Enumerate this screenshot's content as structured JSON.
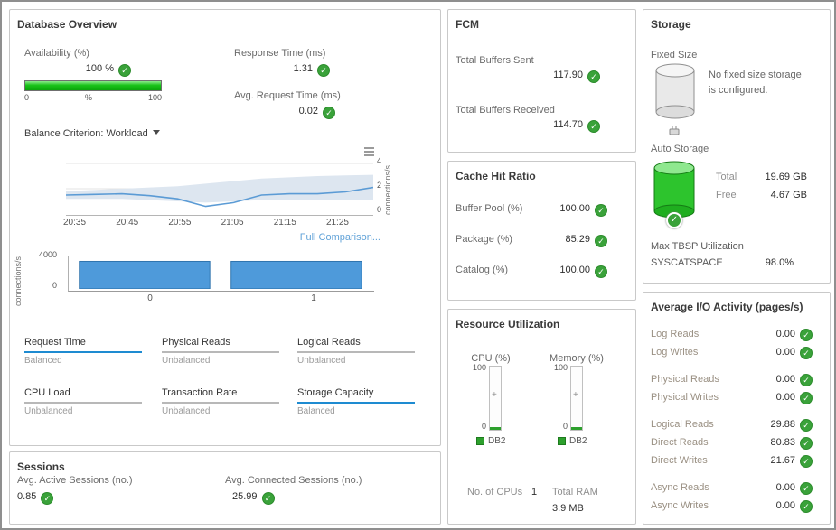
{
  "colors": {
    "status_ok_green": "#3aa23a",
    "balanced_blue": "#1e8bd1",
    "unbalanced_gray": "#b8b8b8",
    "link_blue": "#62a3d8"
  },
  "database_overview": {
    "title": "Database Overview",
    "availability_label": "Availability (%)",
    "availability_value": "100 %",
    "gauge_min": "0",
    "gauge_mid": "%",
    "gauge_max": "100",
    "response_time_label": "Response Time (ms)",
    "response_time_value": "1.31",
    "avg_request_label": "Avg. Request Time (ms)",
    "avg_request_value": "0.02",
    "balance_criterion_label": "Balance Criterion:",
    "balance_criterion_value": "Workload",
    "full_comparison_link": "Full Comparison...",
    "tiles": [
      {
        "name": "Request Time",
        "status": "Balanced"
      },
      {
        "name": "Physical Reads",
        "status": "Unbalanced"
      },
      {
        "name": "Logical Reads",
        "status": "Unbalanced"
      },
      {
        "name": "CPU Load",
        "status": "Unbalanced"
      },
      {
        "name": "Transaction Rate",
        "status": "Unbalanced"
      },
      {
        "name": "Storage Capacity",
        "status": "Balanced"
      }
    ]
  },
  "sessions": {
    "title": "Sessions",
    "active_label": "Avg. Active Sessions (no.)",
    "active_value": "0.85",
    "connected_label": "Avg. Connected Sessions (no.)",
    "connected_value": "25.99"
  },
  "fcm": {
    "title": "FCM",
    "sent_label": "Total Buffers Sent",
    "sent_value": "117.90",
    "received_label": "Total Buffers Received",
    "received_value": "114.70"
  },
  "cache": {
    "title": "Cache Hit Ratio",
    "rows": [
      {
        "label": "Buffer Pool (%)",
        "value": "100.00"
      },
      {
        "label": "Package (%)",
        "value": "85.29"
      },
      {
        "label": "Catalog (%)",
        "value": "100.00"
      }
    ]
  },
  "resource": {
    "title": "Resource Utilization",
    "cpu_label": "CPU (%)",
    "memory_label": "Memory (%)",
    "gauge_max": "100",
    "gauge_min": "0",
    "legend": "DB2",
    "cpus_label": "No. of CPUs",
    "cpus_value": "1",
    "ram_label": "Total RAM",
    "ram_value": "3.9 MB"
  },
  "storage": {
    "title": "Storage",
    "fixed_label": "Fixed Size",
    "fixed_message": "No fixed size storage is configured.",
    "auto_label": "Auto Storage",
    "total_label": "Total",
    "total_value": "19.69 GB",
    "free_label": "Free",
    "free_value": "4.67 GB",
    "max_tbsp_label": "Max TBSP Utilization",
    "tbsp_name": "SYSCATSPACE",
    "tbsp_value": "98.0%"
  },
  "io": {
    "title": "Average I/O Activity (pages/s)",
    "rows": [
      {
        "label": "Log Reads",
        "value": "0.00"
      },
      {
        "label": "Log Writes",
        "value": "0.00"
      },
      {
        "label": "Physical Reads",
        "value": "0.00"
      },
      {
        "label": "Physical Writes",
        "value": "0.00"
      },
      {
        "label": "Logical Reads",
        "value": "29.88"
      },
      {
        "label": "Direct Reads",
        "value": "80.83"
      },
      {
        "label": "Direct Writes",
        "value": "21.67"
      },
      {
        "label": "Async Reads",
        "value": "0.00"
      },
      {
        "label": "Async Writes",
        "value": "0.00"
      }
    ]
  },
  "chart_data": [
    {
      "type": "line",
      "title": "Connections over time",
      "x_ticks": [
        "20:35",
        "20:45",
        "20:55",
        "21:05",
        "21:15",
        "21:25"
      ],
      "series": [
        {
          "name": "connections/s",
          "values": [
            1.5,
            1.55,
            1.6,
            1.45,
            1.2,
            0.6,
            0.9,
            1.5,
            1.6,
            1.6,
            1.75,
            2.1
          ]
        }
      ],
      "band": {
        "upper": [
          1.8,
          1.9,
          2.0,
          2.1,
          2.2,
          2.4,
          2.6,
          2.8,
          2.9,
          3.0,
          3.05,
          3.1
        ],
        "lower": [
          1.2,
          1.2,
          1.2,
          1.1,
          1.0,
          0.9,
          1.0,
          1.1,
          1.1,
          1.1,
          1.1,
          1.1
        ]
      },
      "ylabel": "connections/s",
      "ylim": [
        0,
        4
      ],
      "ytick_labels": [
        "4",
        "2",
        "0"
      ],
      "grid": true,
      "legend_position": "none",
      "line_color": "#5b9bd5",
      "band_color": "#dde6f0"
    },
    {
      "type": "bar",
      "title": "Connections per member",
      "categories": [
        "0",
        "1"
      ],
      "values": [
        3400,
        3400
      ],
      "ylabel": "connections/s",
      "ylim": [
        0,
        4000
      ],
      "ytick_labels": [
        "4000",
        "0"
      ],
      "grid": false,
      "legend_position": "none",
      "bar_color": "#4e9ada",
      "bar_border": "#2f74ae"
    }
  ]
}
